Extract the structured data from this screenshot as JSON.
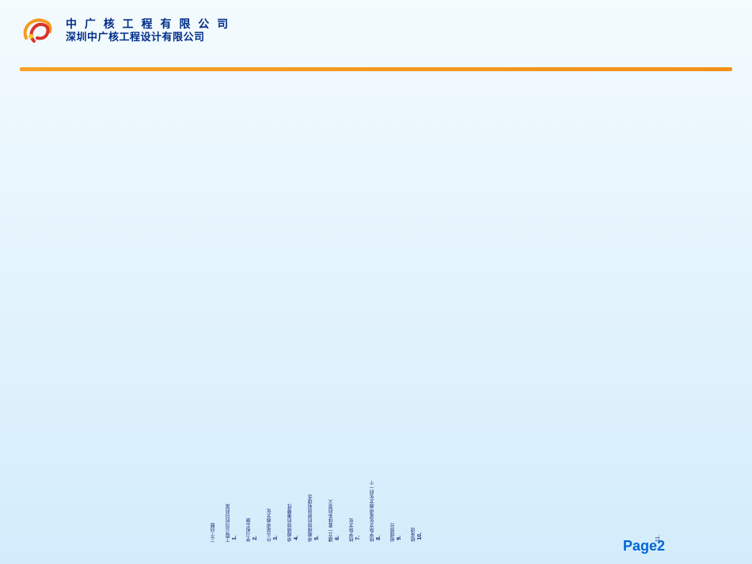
{
  "header": {
    "company_line1": "中 广 核 工 程 有 限 公 司",
    "company_line2": "深圳中广核工程设计有限公司",
    "logo": {
      "colors": {
        "orange": "#f39a1e",
        "red": "#d9322b",
        "yellow": "#f9c927"
      }
    }
  },
  "divider": {
    "color_start": "#f7a12a",
    "color_end": "#f3901a"
  },
  "intro": "三个问题",
  "items": [
    {
      "num": "1.",
      "text": "工程公司的目的是"
    },
    {
      "num": "2.",
      "text": "学习和实施"
    },
    {
      "num": "3.",
      "text": "什么是卓越文化"
    },
    {
      "num": "4.",
      "text": "卓越绩效的重要性"
    },
    {
      "num": "5.",
      "text": "卓越绩效的原则和理念"
    },
    {
      "num": "6.",
      "text": "建立一套体系的意义"
    },
    {
      "num": "7.",
      "text": "核学院文化"
    },
    {
      "num": "8.",
      "text": "核学院文化是卓越文化的一个"
    },
    {
      "num": "9.",
      "text": "组成部分"
    },
    {
      "num": "10.",
      "text": "结束语"
    }
  ],
  "trailing": "11.",
  "footer": {
    "page_label": "Page",
    "page_number": "2"
  },
  "style": {
    "text_color": "#1b2d7a",
    "page_color": "#0066d4",
    "bg_gradient": [
      "#f4fbfd",
      "#e9f6fd",
      "#e0f2fc",
      "#d3ecfb"
    ],
    "item_fontsize": 6,
    "number_fontsize": 7,
    "page_fontsize": 18
  }
}
